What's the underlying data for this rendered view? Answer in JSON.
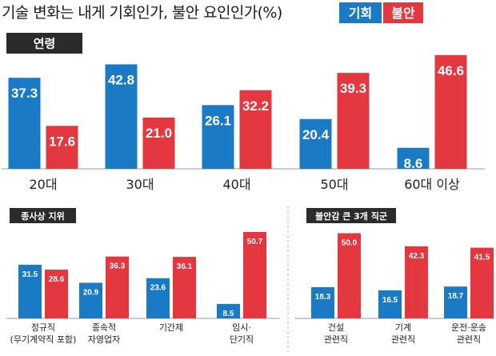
{
  "header": {
    "title": "기술 변화는 내게 기회인가, 불안 요인인가(%)",
    "legend": [
      {
        "label": "기회",
        "color": "#1a7ac4"
      },
      {
        "label": "불안",
        "color": "#e5373f"
      }
    ]
  },
  "colors": {
    "opportunity": "#1a7ac4",
    "anxiety": "#e5373f",
    "section_tag": "#2b2b2b"
  },
  "sections": {
    "age": {
      "label": "연령"
    },
    "employment": {
      "label": "종사상 지위"
    },
    "job": {
      "label": "불안감 큰 3개 직군"
    }
  },
  "chart_data": [
    {
      "type": "bar",
      "title": "연령",
      "categories": [
        "20대",
        "30대",
        "40대",
        "50대",
        "60대 이상"
      ],
      "series": [
        {
          "name": "기회",
          "values": [
            37.3,
            42.8,
            26.1,
            20.4,
            8.6
          ]
        },
        {
          "name": "불안",
          "values": [
            17.6,
            21.0,
            32.2,
            39.3,
            46.6
          ]
        }
      ],
      "value_labels": {
        "기회": [
          "37.3",
          "42.8",
          "26.1",
          "20.4",
          "8.6"
        ],
        "불안": [
          "17.6",
          "21.0",
          "32.2",
          "39.3",
          "46.6"
        ]
      }
    },
    {
      "type": "bar",
      "title": "종사상 지위",
      "categories": [
        [
          "정규직",
          "(무기계약직 포함)"
        ],
        [
          "종속적",
          "자영업자"
        ],
        [
          "기간제"
        ],
        [
          "임시·",
          "단기직"
        ]
      ],
      "series": [
        {
          "name": "기회",
          "values": [
            31.5,
            20.9,
            23.6,
            8.5
          ]
        },
        {
          "name": "불안",
          "values": [
            28.6,
            36.3,
            36.1,
            50.7
          ]
        }
      ],
      "value_labels": {
        "기회": [
          "31.5",
          "20.9",
          "23.6",
          "8.5"
        ],
        "불안": [
          "28.6",
          "36.3",
          "36.1",
          "50.7"
        ]
      }
    },
    {
      "type": "bar",
      "title": "불안감 큰 3개 직군",
      "categories": [
        [
          "건설",
          "관련직"
        ],
        [
          "기계",
          "관련직"
        ],
        [
          "운전·운송",
          "관련직"
        ]
      ],
      "series": [
        {
          "name": "기회",
          "values": [
            18.3,
            16.5,
            18.7
          ]
        },
        {
          "name": "불안",
          "values": [
            50.0,
            42.3,
            41.5
          ]
        }
      ],
      "value_labels": {
        "기회": [
          "18.3",
          "16.5",
          "18.7"
        ],
        "불안": [
          "50.0",
          "42.3",
          "41.5"
        ]
      }
    }
  ]
}
